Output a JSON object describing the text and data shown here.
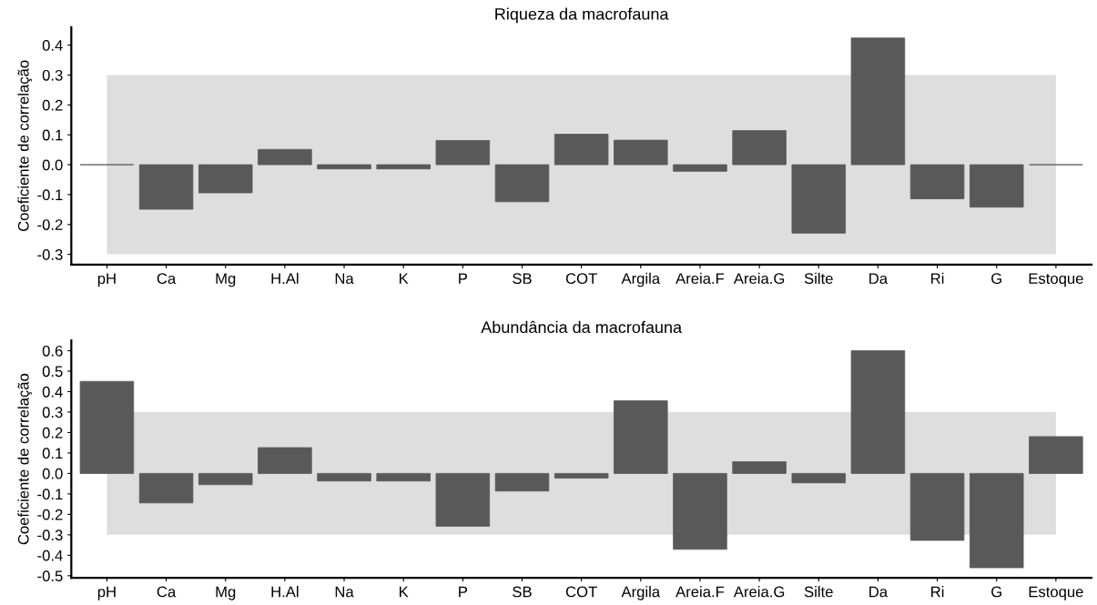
{
  "chart_data": [
    {
      "type": "bar",
      "title": "Riqueza da macrofauna",
      "ylabel": "Coeficiente de correlação",
      "categories": [
        "pH",
        "Ca",
        "Mg",
        "H.Al",
        "Na",
        "K",
        "P",
        "SB",
        "COT",
        "Argila",
        "Areia.F",
        "Areia.G",
        "Silte",
        "Da",
        "Ri",
        "G",
        "Estoque"
      ],
      "values": [
        0,
        -0.149,
        -0.094,
        0.051,
        -0.014,
        -0.014,
        0.081,
        -0.124,
        0.102,
        0.082,
        -0.022,
        0.114,
        -0.229,
        0.424,
        -0.114,
        -0.142,
        0
      ],
      "color": "#595959",
      "ylim": [
        -0.334,
        0.46
      ],
      "yticks": [
        -0.3,
        -0.2,
        -0.1,
        {
          "value": 0,
          "label": "0.0"
        },
        0.1,
        0.2,
        0.3,
        0.4
      ],
      "bands": [
        {
          "axis": "y",
          "from": -0.3,
          "to": 0.3,
          "color": "#dedede"
        }
      ],
      "grid": false,
      "legend": false
    },
    {
      "type": "bar",
      "title": "Abundância da macrofauna",
      "ylabel": "Coeficiente de correlação",
      "categories": [
        "pH",
        "Ca",
        "Mg",
        "H.Al",
        "Na",
        "K",
        "P",
        "SB",
        "COT",
        "Argila",
        "Areia.F",
        "Areia.G",
        "Silte",
        "Da",
        "Ri",
        "G",
        "Estoque"
      ],
      "values": [
        0.45,
        -0.144,
        -0.055,
        0.126,
        -0.037,
        -0.037,
        -0.258,
        -0.086,
        -0.023,
        0.355,
        -0.371,
        0.057,
        -0.046,
        0.6,
        -0.327,
        -0.461,
        0.18
      ],
      "color": "#595959",
      "ylim": [
        -0.51,
        0.65
      ],
      "yticks": [
        -0.5,
        -0.4,
        -0.3,
        -0.2,
        -0.1,
        {
          "value": 0,
          "label": "0.0"
        },
        0.1,
        0.2,
        0.3,
        0.4,
        0.5,
        0.6
      ],
      "bands": [
        {
          "axis": "y",
          "from": -0.3,
          "to": 0.3,
          "color": "#dedede"
        }
      ],
      "grid": false,
      "legend": false
    }
  ]
}
